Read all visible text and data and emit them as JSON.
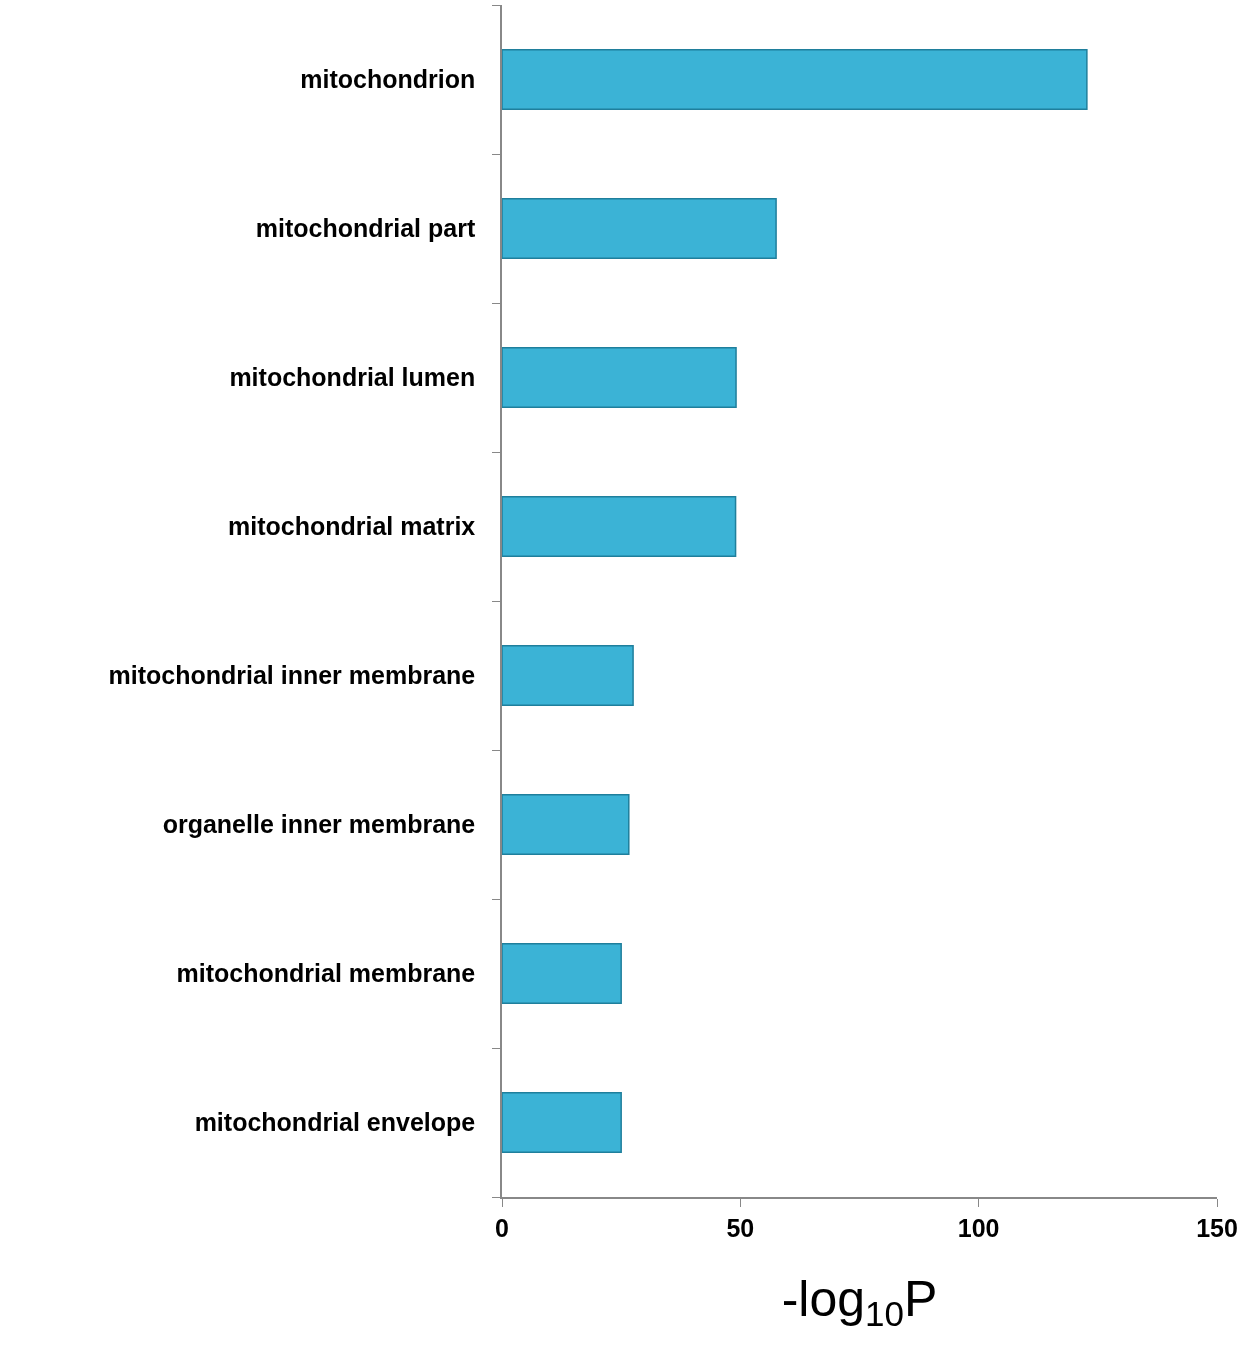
{
  "chart_data": {
    "type": "bar",
    "orientation": "horizontal",
    "xlabel": "-log$_{10}$P",
    "categories": [
      "mitochondrion",
      "mitochondrial part",
      "mitochondrial lumen",
      "mitochondrial matrix",
      "mitochondrial inner membrane",
      "organelle inner membrane",
      "mitochondrial membrane",
      "mitochondrial envelope"
    ],
    "values": [
      122.7,
      57.5,
      49.1,
      49,
      27.5,
      26.6,
      25,
      25
    ],
    "color": "#3bb3d6",
    "xlim": [
      0,
      150
    ],
    "xticks": [
      0,
      50,
      100,
      150
    ],
    "legend": false
  }
}
